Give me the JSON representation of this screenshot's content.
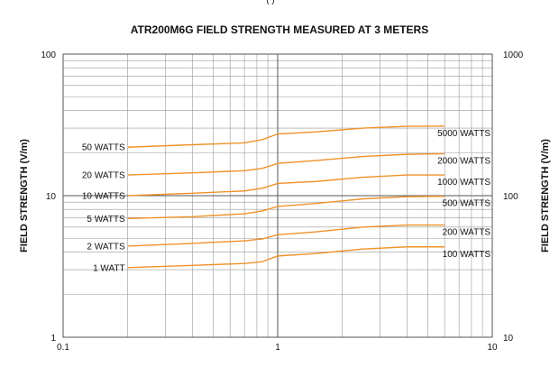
{
  "top_fragment": "(   )",
  "chart_data": {
    "type": "line",
    "title": "ATR200M6G FIELD STRENGTH MEASURED AT 3 METERS",
    "xlabel": "",
    "ylabel": "FIELD STRENGTH  (V/m)",
    "ylabel_right": "FIELD STRENGTH  (V/m)",
    "x_scale": "log",
    "y_scale": "log",
    "xlim": [
      0.1,
      10
    ],
    "ylim": [
      1,
      100
    ],
    "ylim_right": [
      10,
      1000
    ],
    "x_ticks": [
      0.1,
      1,
      10
    ],
    "x_tick_labels": [
      "0.1",
      "1",
      "10"
    ],
    "y_ticks": [
      1,
      10,
      100
    ],
    "y_tick_labels": [
      "1",
      "10",
      "100"
    ],
    "y_right_ticks": [
      1,
      10,
      100
    ],
    "y_right_tick_labels": [
      "10",
      "100",
      "1000"
    ],
    "grid": true,
    "line_color": "#f0922a",
    "series": [
      {
        "name": "1 WATT",
        "label_side": "left",
        "x": [
          0.2,
          0.4,
          0.7,
          0.85,
          1.0,
          1.5,
          2.5,
          4.0,
          6.0
        ],
        "y": [
          3.1,
          3.22,
          3.32,
          3.42,
          3.75,
          3.9,
          4.2,
          4.35,
          4.35
        ]
      },
      {
        "name": "2 WATTS",
        "label_side": "left",
        "x": [
          0.2,
          0.4,
          0.7,
          0.85,
          1.0,
          1.5,
          2.5,
          4.0,
          6.0
        ],
        "y": [
          4.4,
          4.6,
          4.8,
          4.95,
          5.3,
          5.55,
          6.0,
          6.2,
          6.2
        ]
      },
      {
        "name": "5 WATTS",
        "label_side": "left",
        "x": [
          0.2,
          0.4,
          0.7,
          0.85,
          1.0,
          1.5,
          2.5,
          4.0,
          6.0
        ],
        "y": [
          6.9,
          7.1,
          7.45,
          7.8,
          8.4,
          8.8,
          9.5,
          9.85,
          9.9
        ]
      },
      {
        "name": "10 WATTS",
        "label_side": "left",
        "x": [
          0.2,
          0.4,
          0.7,
          0.85,
          1.0,
          1.5,
          2.5,
          4.0,
          6.0
        ],
        "y": [
          10.0,
          10.4,
          10.8,
          11.3,
          12.2,
          12.6,
          13.5,
          14.0,
          14.0
        ]
      },
      {
        "name": "20 WATTS",
        "label_side": "left",
        "x": [
          0.2,
          0.4,
          0.7,
          0.85,
          1.0,
          1.5,
          2.5,
          4.0,
          6.0
        ],
        "y": [
          14.0,
          14.5,
          15.0,
          15.6,
          16.9,
          17.7,
          18.9,
          19.6,
          19.8
        ]
      },
      {
        "name": "50 WATTS",
        "label_side": "left",
        "x": [
          0.2,
          0.4,
          0.7,
          0.85,
          1.0,
          1.5,
          2.5,
          4.0,
          6.0
        ],
        "y": [
          22.0,
          22.9,
          23.6,
          24.9,
          27.3,
          28.2,
          30.0,
          30.9,
          31.0
        ]
      },
      {
        "name": "5000 WATTS",
        "label_side": "right",
        "x": [
          0.2,
          0.4,
          0.7,
          0.85,
          1.0,
          1.5,
          2.5,
          4.0,
          6.0
        ],
        "y": [
          22.0,
          22.9,
          23.6,
          24.9,
          27.3,
          28.2,
          30.0,
          30.9,
          31.0
        ]
      },
      {
        "name": "2000 WATTS",
        "label_side": "right",
        "x": [
          0.2,
          0.4,
          0.7,
          0.85,
          1.0,
          1.5,
          2.5,
          4.0,
          6.0
        ],
        "y": [
          14.0,
          14.5,
          15.0,
          15.6,
          16.9,
          17.7,
          18.9,
          19.6,
          19.8
        ]
      },
      {
        "name": "1000 WATTS",
        "label_side": "right",
        "x": [
          0.2,
          0.4,
          0.7,
          0.85,
          1.0,
          1.5,
          2.5,
          4.0,
          6.0
        ],
        "y": [
          10.0,
          10.4,
          10.8,
          11.3,
          12.2,
          12.6,
          13.5,
          14.0,
          14.0
        ]
      },
      {
        "name": "500 WATTS",
        "label_side": "right",
        "x": [
          0.2,
          0.4,
          0.7,
          0.85,
          1.0,
          1.5,
          2.5,
          4.0,
          6.0
        ],
        "y": [
          6.9,
          7.1,
          7.45,
          7.8,
          8.4,
          8.8,
          9.5,
          9.85,
          9.9
        ]
      },
      {
        "name": "200 WATTS",
        "label_side": "right",
        "x": [
          0.2,
          0.4,
          0.7,
          0.85,
          1.0,
          1.5,
          2.5,
          4.0,
          6.0
        ],
        "y": [
          4.4,
          4.6,
          4.8,
          4.95,
          5.3,
          5.55,
          6.0,
          6.2,
          6.2
        ]
      },
      {
        "name": "100 WATTS",
        "label_side": "right",
        "x": [
          0.2,
          0.4,
          0.7,
          0.85,
          1.0,
          1.5,
          2.5,
          4.0,
          6.0
        ],
        "y": [
          3.1,
          3.22,
          3.32,
          3.42,
          3.75,
          3.9,
          4.2,
          4.35,
          4.35
        ]
      }
    ]
  }
}
